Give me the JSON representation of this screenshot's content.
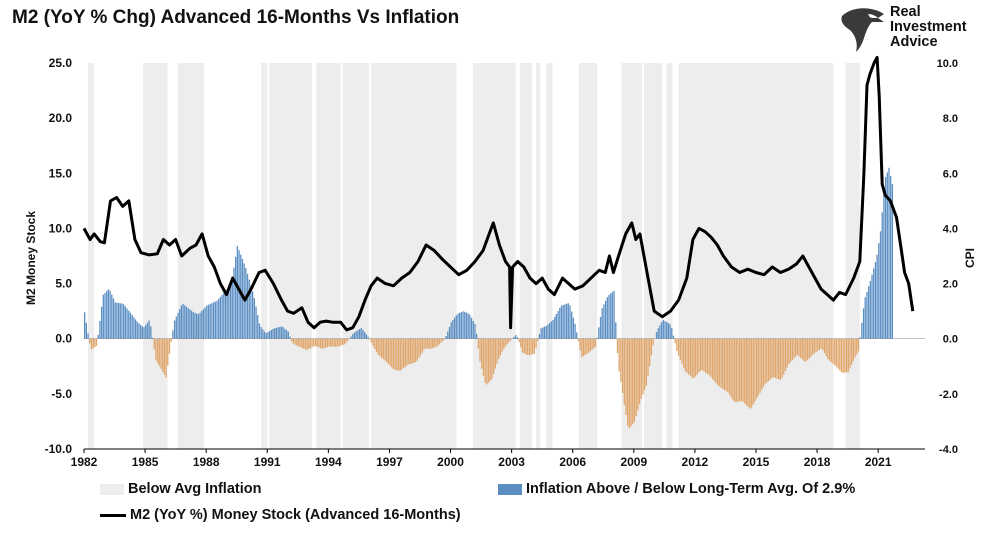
{
  "title": "M2 (YoY % Chg) Advanced 16-Months Vs Inflation",
  "brand": {
    "lines": [
      "Real",
      "Investment",
      "Advice"
    ],
    "icon": "eagle-head-icon"
  },
  "colors": {
    "shade": "#ededed",
    "bar_pos": "#5b8fc4",
    "bar_neg": "#e0a569",
    "line": "#000000"
  },
  "legend": {
    "shade": "Below Avg Inflation",
    "bars": "Inflation Above / Below Long-Term Avg. Of 2.9%",
    "line": "M2 (YoY %) Money Stock (Advanced 16-Months)"
  },
  "chart_data": {
    "type": "line",
    "ylabel": "M2 Money Stock",
    "y2label": "CPI",
    "xlim": [
      1982,
      2023.3
    ],
    "ylim": [
      -10,
      25
    ],
    "y2lim": [
      -4,
      10
    ],
    "x_ticks": [
      "1982",
      "1985",
      "1988",
      "1991",
      "1994",
      "1997",
      "2000",
      "2003",
      "2006",
      "2009",
      "2012",
      "2015",
      "2018",
      "2021"
    ],
    "y_ticks": [
      "-10.0",
      "-5.0",
      "0.0",
      "5.0",
      "10.0",
      "15.0",
      "20.0",
      "25.0"
    ],
    "y2_ticks": [
      "-4.0",
      "-2.0",
      "0.0",
      "2.0",
      "4.0",
      "6.0",
      "8.0",
      "10.0"
    ],
    "grid": false,
    "legend_position": "bottom",
    "series": [
      {
        "name": "M2 (YoY %) Money Stock (Advanced 16-Months)",
        "axis": "left",
        "points": [
          [
            1982.0,
            10.0
          ],
          [
            1982.3,
            9.0
          ],
          [
            1982.5,
            9.5
          ],
          [
            1982.8,
            8.8
          ],
          [
            1983.0,
            8.7
          ],
          [
            1983.3,
            12.5
          ],
          [
            1983.6,
            12.8
          ],
          [
            1983.9,
            12.0
          ],
          [
            1984.2,
            12.5
          ],
          [
            1984.5,
            9.0
          ],
          [
            1984.8,
            7.8
          ],
          [
            1985.2,
            7.6
          ],
          [
            1985.6,
            7.7
          ],
          [
            1985.9,
            9.0
          ],
          [
            1986.2,
            8.5
          ],
          [
            1986.5,
            9.0
          ],
          [
            1986.8,
            7.5
          ],
          [
            1987.2,
            8.2
          ],
          [
            1987.5,
            8.5
          ],
          [
            1987.8,
            9.5
          ],
          [
            1988.1,
            7.5
          ],
          [
            1988.4,
            6.5
          ],
          [
            1988.7,
            5.0
          ],
          [
            1989.0,
            4.0
          ],
          [
            1989.3,
            5.5
          ],
          [
            1989.6,
            4.5
          ],
          [
            1989.9,
            3.5
          ],
          [
            1990.2,
            4.5
          ],
          [
            1990.6,
            6.0
          ],
          [
            1990.9,
            6.2
          ],
          [
            1991.3,
            5.0
          ],
          [
            1991.7,
            3.5
          ],
          [
            1992.0,
            2.5
          ],
          [
            1992.3,
            2.3
          ],
          [
            1992.7,
            2.8
          ],
          [
            1993.0,
            1.5
          ],
          [
            1993.3,
            1.0
          ],
          [
            1993.6,
            1.5
          ],
          [
            1993.9,
            1.6
          ],
          [
            1994.2,
            1.5
          ],
          [
            1994.6,
            1.5
          ],
          [
            1994.9,
            0.8
          ],
          [
            1995.2,
            1.0
          ],
          [
            1995.5,
            2.0
          ],
          [
            1995.8,
            3.5
          ],
          [
            1996.1,
            4.8
          ],
          [
            1996.4,
            5.5
          ],
          [
            1996.8,
            5.0
          ],
          [
            1997.2,
            4.8
          ],
          [
            1997.6,
            5.5
          ],
          [
            1998.0,
            6.0
          ],
          [
            1998.4,
            7.0
          ],
          [
            1998.8,
            8.5
          ],
          [
            1999.2,
            8.0
          ],
          [
            1999.6,
            7.2
          ],
          [
            2000.0,
            6.5
          ],
          [
            2000.4,
            5.8
          ],
          [
            2000.8,
            6.2
          ],
          [
            2001.2,
            7.0
          ],
          [
            2001.6,
            8.0
          ],
          [
            2001.9,
            9.5
          ],
          [
            2002.1,
            10.5
          ],
          [
            2002.4,
            8.5
          ],
          [
            2002.7,
            7.0
          ],
          [
            2002.9,
            6.5
          ],
          [
            2002.95,
            1.0
          ],
          [
            2003.05,
            6.5
          ],
          [
            2003.3,
            7.0
          ],
          [
            2003.6,
            6.5
          ],
          [
            2003.9,
            5.5
          ],
          [
            2004.2,
            5.0
          ],
          [
            2004.5,
            5.5
          ],
          [
            2004.8,
            4.5
          ],
          [
            2005.1,
            4.0
          ],
          [
            2005.5,
            5.5
          ],
          [
            2005.8,
            5.0
          ],
          [
            2006.1,
            4.5
          ],
          [
            2006.5,
            4.8
          ],
          [
            2006.9,
            5.5
          ],
          [
            2007.3,
            6.2
          ],
          [
            2007.6,
            6.0
          ],
          [
            2007.8,
            7.5
          ],
          [
            2008.0,
            6.0
          ],
          [
            2008.3,
            7.8
          ],
          [
            2008.6,
            9.5
          ],
          [
            2008.9,
            10.5
          ],
          [
            2009.1,
            9.0
          ],
          [
            2009.3,
            9.5
          ],
          [
            2009.6,
            6.5
          ],
          [
            2009.8,
            4.5
          ],
          [
            2010.0,
            2.5
          ],
          [
            2010.4,
            2.0
          ],
          [
            2010.8,
            2.5
          ],
          [
            2011.2,
            3.5
          ],
          [
            2011.6,
            5.5
          ],
          [
            2011.9,
            9.0
          ],
          [
            2012.2,
            10.0
          ],
          [
            2012.5,
            9.7
          ],
          [
            2012.8,
            9.2
          ],
          [
            2013.1,
            8.5
          ],
          [
            2013.4,
            7.5
          ],
          [
            2013.8,
            6.5
          ],
          [
            2014.2,
            6.0
          ],
          [
            2014.6,
            6.3
          ],
          [
            2015.0,
            6.0
          ],
          [
            2015.4,
            5.8
          ],
          [
            2015.8,
            6.5
          ],
          [
            2016.2,
            6.0
          ],
          [
            2016.6,
            6.3
          ],
          [
            2017.0,
            6.8
          ],
          [
            2017.3,
            7.5
          ],
          [
            2017.6,
            6.5
          ],
          [
            2017.9,
            5.5
          ],
          [
            2018.2,
            4.5
          ],
          [
            2018.5,
            4.0
          ],
          [
            2018.8,
            3.5
          ],
          [
            2019.1,
            4.2
          ],
          [
            2019.4,
            4.0
          ],
          [
            2019.8,
            5.5
          ],
          [
            2020.1,
            7.0
          ],
          [
            2020.3,
            15.0
          ],
          [
            2020.45,
            23.0
          ],
          [
            2020.6,
            24.0
          ],
          [
            2020.8,
            25.0
          ],
          [
            2020.95,
            25.5
          ],
          [
            2021.05,
            22.0
          ],
          [
            2021.2,
            14.0
          ],
          [
            2021.35,
            13.0
          ],
          [
            2021.6,
            12.5
          ],
          [
            2021.9,
            11.0
          ],
          [
            2022.1,
            8.5
          ],
          [
            2022.3,
            6.0
          ],
          [
            2022.5,
            5.0
          ],
          [
            2022.7,
            2.5
          ]
        ]
      },
      {
        "name": "Inflation Above / Below Long-Term Avg. Of 2.9%",
        "axis": "right",
        "points": [
          [
            1982.0,
            1.2
          ],
          [
            1982.3,
            -0.5
          ],
          [
            1982.6,
            -0.3
          ],
          [
            1982.9,
            1.8
          ],
          [
            1983.2,
            2.0
          ],
          [
            1983.5,
            1.4
          ],
          [
            1983.9,
            1.3
          ],
          [
            1984.3,
            0.9
          ],
          [
            1984.6,
            0.6
          ],
          [
            1984.9,
            0.4
          ],
          [
            1985.2,
            0.7
          ],
          [
            1985.5,
            -0.8
          ],
          [
            1985.8,
            -1.2
          ],
          [
            1986.0,
            -1.5
          ],
          [
            1986.4,
            0.7
          ],
          [
            1986.8,
            1.5
          ],
          [
            1987.2,
            1.3
          ],
          [
            1987.6,
            1.1
          ],
          [
            1988.0,
            1.4
          ],
          [
            1988.5,
            1.5
          ],
          [
            1988.9,
            1.8
          ],
          [
            1989.2,
            2.0
          ],
          [
            1989.5,
            3.4
          ],
          [
            1989.9,
            2.6
          ],
          [
            1990.3,
            1.6
          ],
          [
            1990.6,
            0.5
          ],
          [
            1990.9,
            0.2
          ],
          [
            1991.3,
            0.4
          ],
          [
            1991.7,
            0.5
          ],
          [
            1992.0,
            0.3
          ],
          [
            1992.2,
            -0.2
          ],
          [
            1992.6,
            -0.4
          ],
          [
            1992.9,
            -0.5
          ],
          [
            1993.3,
            -0.3
          ],
          [
            1993.7,
            -0.4
          ],
          [
            1994.0,
            -0.3
          ],
          [
            1994.4,
            -0.3
          ],
          [
            1994.8,
            -0.2
          ],
          [
            1995.2,
            0.2
          ],
          [
            1995.6,
            0.4
          ],
          [
            1995.9,
            0.1
          ],
          [
            1996.4,
            -0.6
          ],
          [
            1996.8,
            -0.9
          ],
          [
            1997.2,
            -1.3
          ],
          [
            1997.5,
            -1.4
          ],
          [
            1997.9,
            -1.2
          ],
          [
            1998.3,
            -1.0
          ],
          [
            1998.7,
            -0.4
          ],
          [
            1999.0,
            -0.4
          ],
          [
            1999.3,
            -0.3
          ],
          [
            1999.7,
            0.0
          ],
          [
            2000.0,
            0.6
          ],
          [
            2000.3,
            0.9
          ],
          [
            2000.6,
            1.0
          ],
          [
            2000.9,
            0.9
          ],
          [
            2001.2,
            0.5
          ],
          [
            2001.4,
            -0.8
          ],
          [
            2001.7,
            -1.8
          ],
          [
            2002.0,
            -1.6
          ],
          [
            2002.3,
            -0.9
          ],
          [
            2002.6,
            -0.4
          ],
          [
            2002.9,
            -0.1
          ],
          [
            2003.2,
            0.2
          ],
          [
            2003.5,
            -0.6
          ],
          [
            2003.8,
            -0.7
          ],
          [
            2004.1,
            -0.6
          ],
          [
            2004.4,
            0.4
          ],
          [
            2004.7,
            0.5
          ],
          [
            2005.0,
            0.7
          ],
          [
            2005.4,
            1.2
          ],
          [
            2005.8,
            1.3
          ],
          [
            2006.1,
            0.5
          ],
          [
            2006.4,
            -0.7
          ],
          [
            2006.8,
            -0.5
          ],
          [
            2007.1,
            -0.3
          ],
          [
            2007.4,
            1.2
          ],
          [
            2007.7,
            1.8
          ],
          [
            2008.0,
            2.1
          ],
          [
            2008.2,
            -1.2
          ],
          [
            2008.5,
            -3.0
          ],
          [
            2008.7,
            -4.0
          ],
          [
            2009.0,
            -3.5
          ],
          [
            2009.3,
            -2.5
          ],
          [
            2009.6,
            -1.8
          ],
          [
            2009.9,
            -0.3
          ],
          [
            2010.1,
            0.3
          ],
          [
            2010.4,
            0.7
          ],
          [
            2010.8,
            0.5
          ],
          [
            2011.1,
            -0.5
          ],
          [
            2011.5,
            -1.2
          ],
          [
            2011.9,
            -1.5
          ],
          [
            2012.3,
            -1.2
          ],
          [
            2012.7,
            -1.5
          ],
          [
            2013.1,
            -2.0
          ],
          [
            2013.5,
            -2.4
          ],
          [
            2013.9,
            -2.8
          ],
          [
            2014.3,
            -2.6
          ],
          [
            2014.7,
            -2.8
          ],
          [
            2015.0,
            -2.3
          ],
          [
            2015.4,
            -1.7
          ],
          [
            2015.8,
            -1.4
          ],
          [
            2016.2,
            -1.5
          ],
          [
            2016.6,
            -0.9
          ],
          [
            2017.0,
            -0.6
          ],
          [
            2017.4,
            -0.9
          ],
          [
            2017.8,
            -0.6
          ],
          [
            2018.2,
            -0.4
          ],
          [
            2018.5,
            -0.9
          ],
          [
            2018.8,
            -1.2
          ],
          [
            2019.2,
            -1.5
          ],
          [
            2019.5,
            -1.4
          ],
          [
            2019.8,
            -0.8
          ],
          [
            2020.0,
            -0.5
          ],
          [
            2020.3,
            1.5
          ],
          [
            2020.6,
            2.2
          ],
          [
            2020.9,
            3.0
          ],
          [
            2021.1,
            4.0
          ],
          [
            2021.3,
            5.8
          ],
          [
            2021.5,
            6.2
          ],
          [
            2021.7,
            5.5
          ]
        ]
      }
    ],
    "shaded_periods": [
      [
        1982.2,
        1982.5
      ],
      [
        1984.9,
        1986.1
      ],
      [
        1986.6,
        1987.9
      ],
      [
        1990.7,
        1991.0
      ],
      [
        1991.1,
        1993.2
      ],
      [
        1993.4,
        1994.6
      ],
      [
        1994.7,
        1996.0
      ],
      [
        1996.1,
        2000.3
      ],
      [
        2001.1,
        2003.2
      ],
      [
        2003.4,
        2004.0
      ],
      [
        2004.2,
        2004.4
      ],
      [
        2004.7,
        2005.0
      ],
      [
        2006.3,
        2007.2
      ],
      [
        2008.4,
        2009.4
      ],
      [
        2009.5,
        2010.4
      ],
      [
        2010.6,
        2010.9
      ],
      [
        2011.2,
        2018.8
      ],
      [
        2019.4,
        2020.1
      ]
    ]
  }
}
